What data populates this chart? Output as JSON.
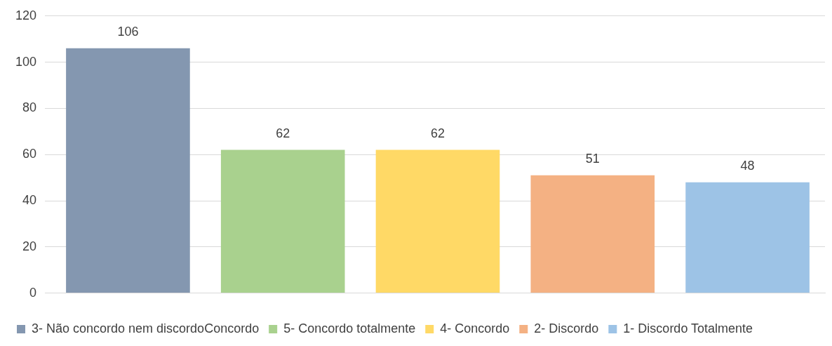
{
  "chart_data": {
    "type": "bar",
    "categories": [
      null
    ],
    "series": [
      {
        "name": "3- Não concordo nem discordoConcordo",
        "color": "#8497b0",
        "values": [
          106
        ]
      },
      {
        "name": "5- Concordo totalmente",
        "color": "#a9d18e",
        "values": [
          62
        ]
      },
      {
        "name": "4- Concordo",
        "color": "#ffd966",
        "values": [
          62
        ]
      },
      {
        "name": "2- Discordo",
        "color": "#f4b183",
        "values": [
          51
        ]
      },
      {
        "name": "1- Discordo Totalmente",
        "color": "#9dc3e6",
        "values": [
          48
        ]
      }
    ],
    "ylim": [
      0,
      120
    ],
    "yticks": [
      0,
      20,
      40,
      60,
      80,
      100,
      120
    ],
    "grid": "y",
    "legend": "bottom",
    "data_labels": true
  }
}
